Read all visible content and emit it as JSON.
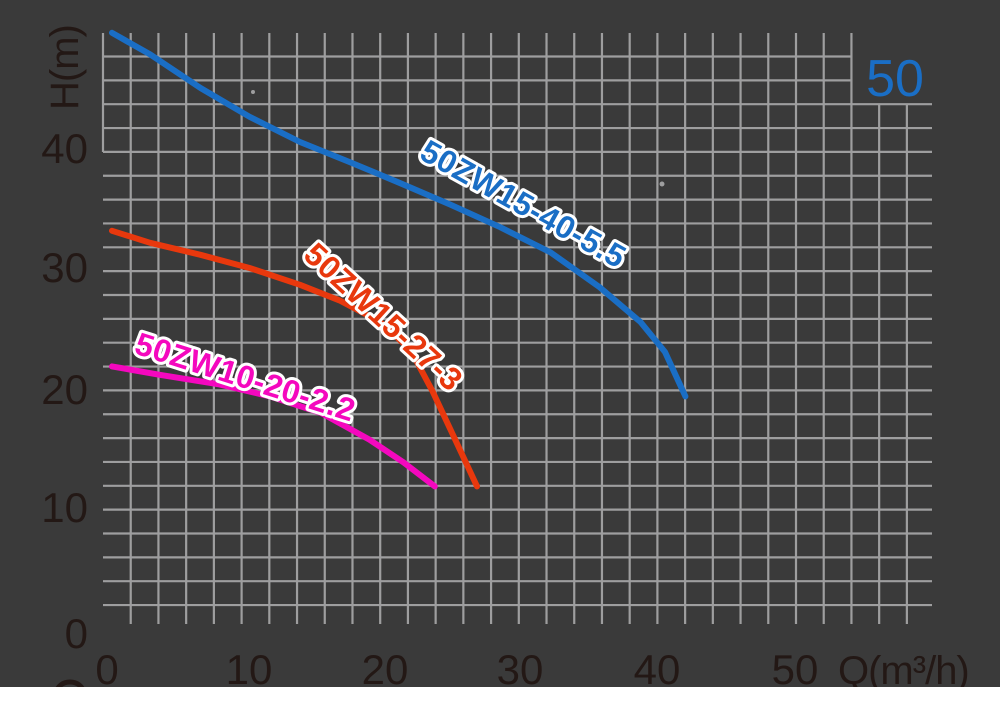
{
  "chart_data": {
    "type": "line",
    "title": "",
    "xlabel": "Q(m³/h)",
    "ylabel": "H(m)",
    "size_label": "50",
    "x_ticks": [
      "0",
      "10",
      "20",
      "30",
      "40",
      "50"
    ],
    "y_ticks": [
      "0",
      "10",
      "20",
      "30",
      "40"
    ],
    "xlim": [
      0,
      60
    ],
    "ylim": [
      0,
      50
    ],
    "grid": "on",
    "legend_position": "labels-on-curves",
    "series": [
      {
        "name": "50ZW15-40-5.5",
        "color": "#1a6ec5",
        "points": [
          [
            0,
            49.6
          ],
          [
            2.8,
            47.8
          ],
          [
            6.5,
            45.0
          ],
          [
            10.1,
            42.6
          ],
          [
            13.8,
            40.5
          ],
          [
            17.5,
            38.8
          ],
          [
            21.1,
            37.1
          ],
          [
            24.8,
            35.3
          ],
          [
            28.5,
            33.4
          ],
          [
            32.2,
            31.3
          ],
          [
            35.8,
            28.4
          ],
          [
            38.8,
            25.5
          ],
          [
            40.6,
            23.0
          ],
          [
            42.1,
            19.3
          ]
        ]
      },
      {
        "name": "50ZW15-27-3",
        "color": "#e8380d",
        "points": [
          [
            0,
            33.1
          ],
          [
            2.8,
            32.1
          ],
          [
            6.5,
            31.1
          ],
          [
            10.1,
            30.0
          ],
          [
            13.8,
            28.6
          ],
          [
            16.7,
            27.3
          ],
          [
            19.7,
            25.5
          ],
          [
            21.9,
            23.2
          ],
          [
            23.5,
            19.8
          ],
          [
            25.2,
            15.7
          ],
          [
            26.8,
            11.8
          ]
        ]
      },
      {
        "name": "50ZW10-20-2.2",
        "color": "#f408be",
        "points": [
          [
            0,
            21.8
          ],
          [
            3.5,
            21.1
          ],
          [
            7.9,
            20.3
          ],
          [
            11.6,
            19.3
          ],
          [
            15.4,
            17.9
          ],
          [
            18.9,
            15.7
          ],
          [
            21.4,
            13.8
          ],
          [
            23.7,
            11.8
          ]
        ]
      }
    ]
  }
}
